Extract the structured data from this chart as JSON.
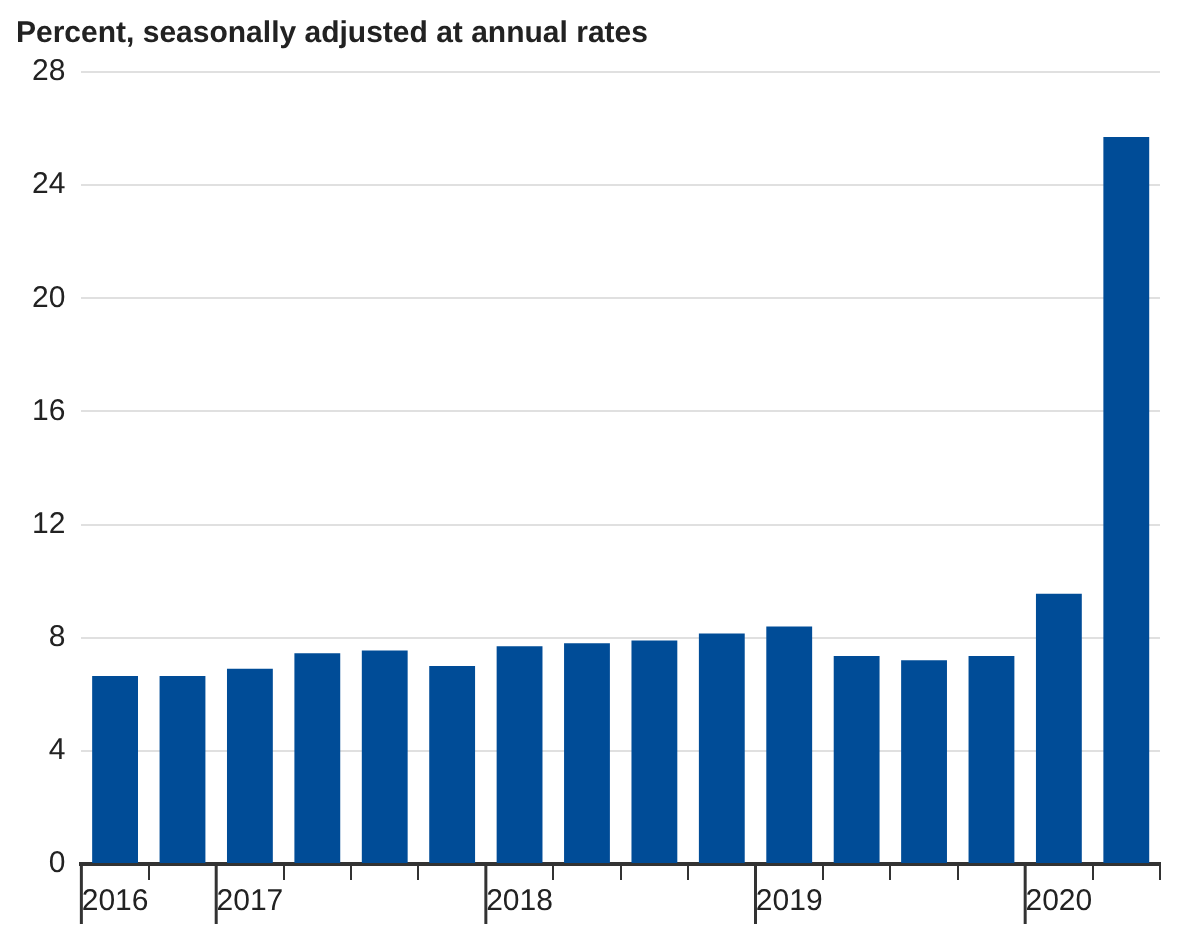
{
  "chart_data": {
    "type": "bar",
    "ylabel": "Percent, seasonally adjusted at annual rates",
    "categories": [
      "2016",
      null,
      "2017",
      null,
      null,
      null,
      "2018",
      null,
      null,
      null,
      "2019",
      null,
      null,
      null,
      "2020",
      null
    ],
    "values": [
      6.65,
      6.65,
      6.9,
      7.45,
      7.55,
      7.0,
      7.7,
      7.8,
      7.9,
      8.15,
      8.4,
      7.35,
      7.2,
      7.35,
      9.55,
      25.7
    ],
    "color": "#004c97",
    "ylim": [
      0,
      28
    ],
    "yticks": [
      0,
      4,
      8,
      12,
      16,
      20,
      24,
      28
    ],
    "grid": "y"
  }
}
